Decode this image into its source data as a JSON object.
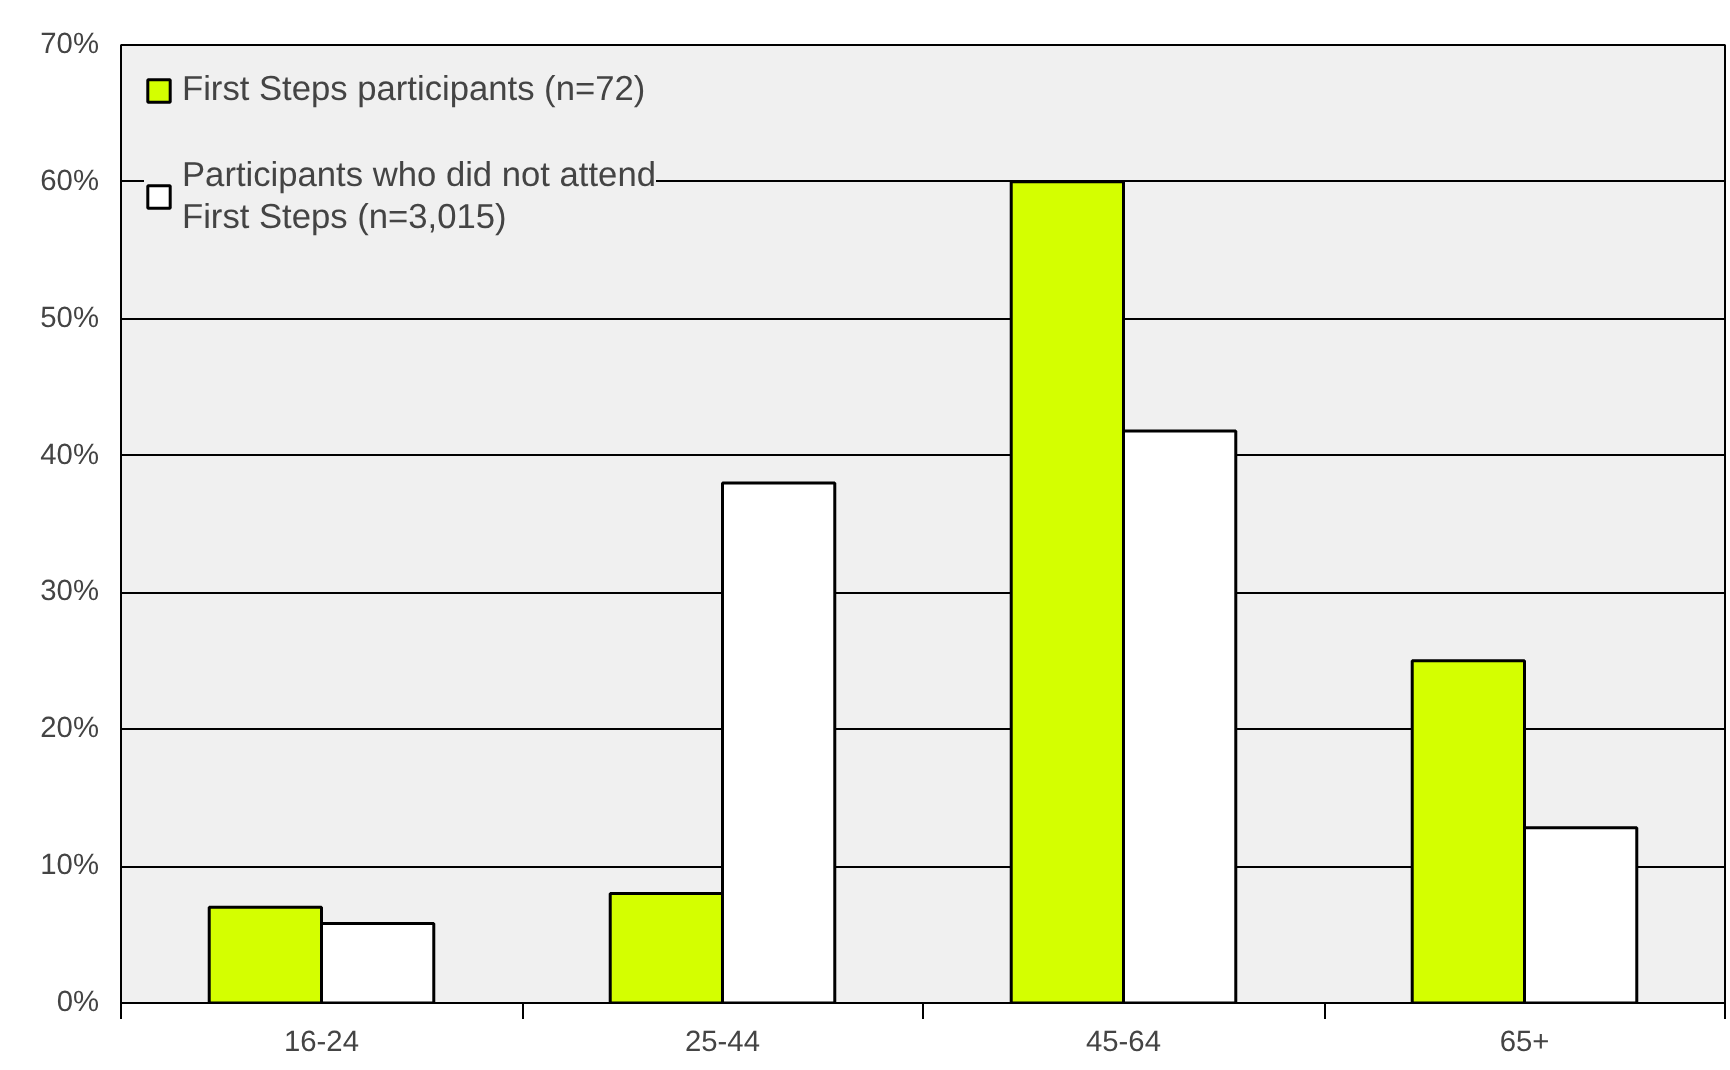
{
  "chart_data": {
    "type": "bar",
    "categories": [
      "16-24",
      "25-44",
      "45-64",
      "65+"
    ],
    "series": [
      {
        "name": "First Steps participants (n=72)",
        "color": "#d4ff00",
        "values": [
          7,
          8,
          60,
          25
        ]
      },
      {
        "name": "Participants who did not attend First Steps (n=3,015)",
        "color": "#ffffff",
        "values": [
          5.8,
          38,
          41.8,
          12.8
        ]
      }
    ],
    "ylim": [
      0,
      70
    ],
    "yticks": [
      {
        "value": 0,
        "label": "0%"
      },
      {
        "value": 10,
        "label": "10%"
      },
      {
        "value": 20,
        "label": "20%"
      },
      {
        "value": 30,
        "label": "30%"
      },
      {
        "value": 40,
        "label": "40%"
      },
      {
        "value": 50,
        "label": "50%"
      },
      {
        "value": 60,
        "label": "60%"
      },
      {
        "value": 70,
        "label": "70%"
      }
    ],
    "grid": "y",
    "legend": "top left"
  }
}
